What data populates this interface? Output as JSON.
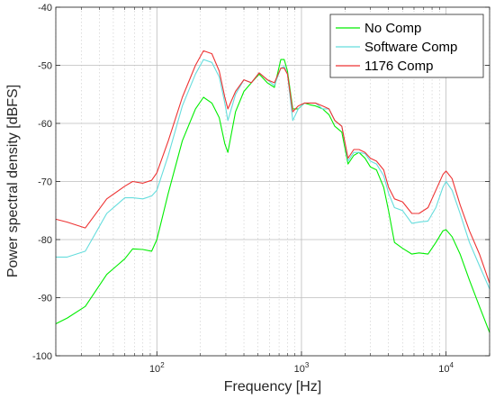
{
  "chart_data": {
    "type": "line",
    "xlabel": "Frequency [Hz]",
    "ylabel": "Power spectral density [dBFS]",
    "xscale": "log",
    "xlim": [
      20,
      20000
    ],
    "ylim": [
      -100,
      -40
    ],
    "yticks": [
      "-100",
      "-90",
      "-80",
      "-70",
      "-60",
      "-50",
      "-40"
    ],
    "xticks": [
      {
        "base": "10",
        "exp": "2"
      },
      {
        "base": "10",
        "exp": "3"
      },
      {
        "base": "10",
        "exp": "4"
      }
    ],
    "grid": true,
    "legend_position": "top-right",
    "series": [
      {
        "name": "No Comp",
        "color": "#00ee00",
        "x": [
          20,
          24,
          32,
          45,
          60,
          68,
          80,
          92,
          100,
          120,
          150,
          185,
          210,
          240,
          270,
          295,
          310,
          350,
          400,
          450,
          510,
          580,
          650,
          720,
          760,
          800,
          870,
          950,
          1050,
          1150,
          1250,
          1400,
          1550,
          1700,
          1900,
          2100,
          2300,
          2500,
          2750,
          3000,
          3300,
          3700,
          4000,
          4400,
          5000,
          5800,
          6500,
          7500,
          8500,
          9500,
          10000,
          11000,
          12500,
          14500,
          17000,
          20000
        ],
        "y": [
          -94.5,
          -93.5,
          -91.5,
          -86,
          -83.3,
          -81.6,
          -81.7,
          -82,
          -80,
          -72,
          -63,
          -57.5,
          -55.5,
          -56.5,
          -59,
          -63.5,
          -65,
          -58,
          -54.5,
          -53,
          -51.5,
          -53,
          -53.8,
          -49,
          -49,
          -51,
          -57.5,
          -57.5,
          -56.5,
          -56.8,
          -57,
          -57.5,
          -58.5,
          -60.5,
          -61.5,
          -67,
          -65.5,
          -65,
          -66,
          -67.5,
          -68,
          -71,
          -75,
          -80.5,
          -81.5,
          -82.5,
          -82.3,
          -82.5,
          -80.5,
          -78.5,
          -78.3,
          -79.5,
          -82.5,
          -87,
          -91.5,
          -96
        ]
      },
      {
        "name": "Software Comp",
        "color": "#66dddd",
        "x": [
          20,
          24,
          32,
          45,
          60,
          68,
          80,
          92,
          100,
          120,
          150,
          185,
          210,
          240,
          270,
          295,
          310,
          350,
          400,
          450,
          510,
          580,
          650,
          720,
          760,
          800,
          870,
          950,
          1050,
          1150,
          1250,
          1400,
          1550,
          1700,
          1900,
          2100,
          2300,
          2500,
          2750,
          3000,
          3300,
          3700,
          4000,
          4400,
          5000,
          5800,
          6500,
          7500,
          8500,
          9500,
          10000,
          11000,
          12500,
          14500,
          17000,
          20000
        ],
        "y": [
          -83,
          -83,
          -82,
          -75.5,
          -72.8,
          -72.8,
          -73,
          -72.5,
          -71.5,
          -65.5,
          -57,
          -51.5,
          -49,
          -49.5,
          -52,
          -56.5,
          -59.5,
          -55,
          -52.5,
          -53,
          -51.3,
          -52.5,
          -53.5,
          -50.5,
          -50.2,
          -51.5,
          -59.5,
          -57.5,
          -56.5,
          -56.5,
          -56.5,
          -57.5,
          -57.5,
          -59.5,
          -60.5,
          -66.5,
          -65,
          -65,
          -65.2,
          -66.5,
          -67,
          -69,
          -72,
          -74.5,
          -75,
          -77.2,
          -77,
          -76.8,
          -74.5,
          -71,
          -70,
          -71.5,
          -75.5,
          -80.5,
          -84.5,
          -88.5
        ]
      },
      {
        "name": "1176 Comp",
        "color": "#ee3333",
        "x": [
          20,
          24,
          32,
          45,
          60,
          68,
          80,
          92,
          100,
          120,
          150,
          185,
          210,
          240,
          270,
          295,
          310,
          350,
          400,
          450,
          510,
          580,
          650,
          720,
          760,
          800,
          870,
          950,
          1050,
          1150,
          1250,
          1400,
          1550,
          1700,
          1900,
          2100,
          2300,
          2500,
          2750,
          3000,
          3300,
          3700,
          4000,
          4400,
          5000,
          5800,
          6500,
          7500,
          8500,
          9500,
          10000,
          11000,
          12500,
          14500,
          17000,
          20000
        ],
        "y": [
          -76.5,
          -77,
          -78,
          -73,
          -70.8,
          -70,
          -70.3,
          -69.8,
          -68.5,
          -63,
          -55.5,
          -50,
          -47.5,
          -48,
          -51,
          -55.5,
          -57.5,
          -54.5,
          -52.5,
          -53,
          -51.3,
          -52.5,
          -53,
          -50.5,
          -50.5,
          -51.5,
          -58,
          -57,
          -56.5,
          -56.5,
          -56.5,
          -57,
          -57.5,
          -59.5,
          -60.5,
          -66,
          -64.5,
          -64.5,
          -65,
          -66,
          -66.5,
          -68,
          -71,
          -73,
          -73.5,
          -75.5,
          -75.5,
          -74.5,
          -71.5,
          -68.8,
          -68.2,
          -69.5,
          -74,
          -78.5,
          -82.5,
          -87.5
        ]
      }
    ]
  }
}
